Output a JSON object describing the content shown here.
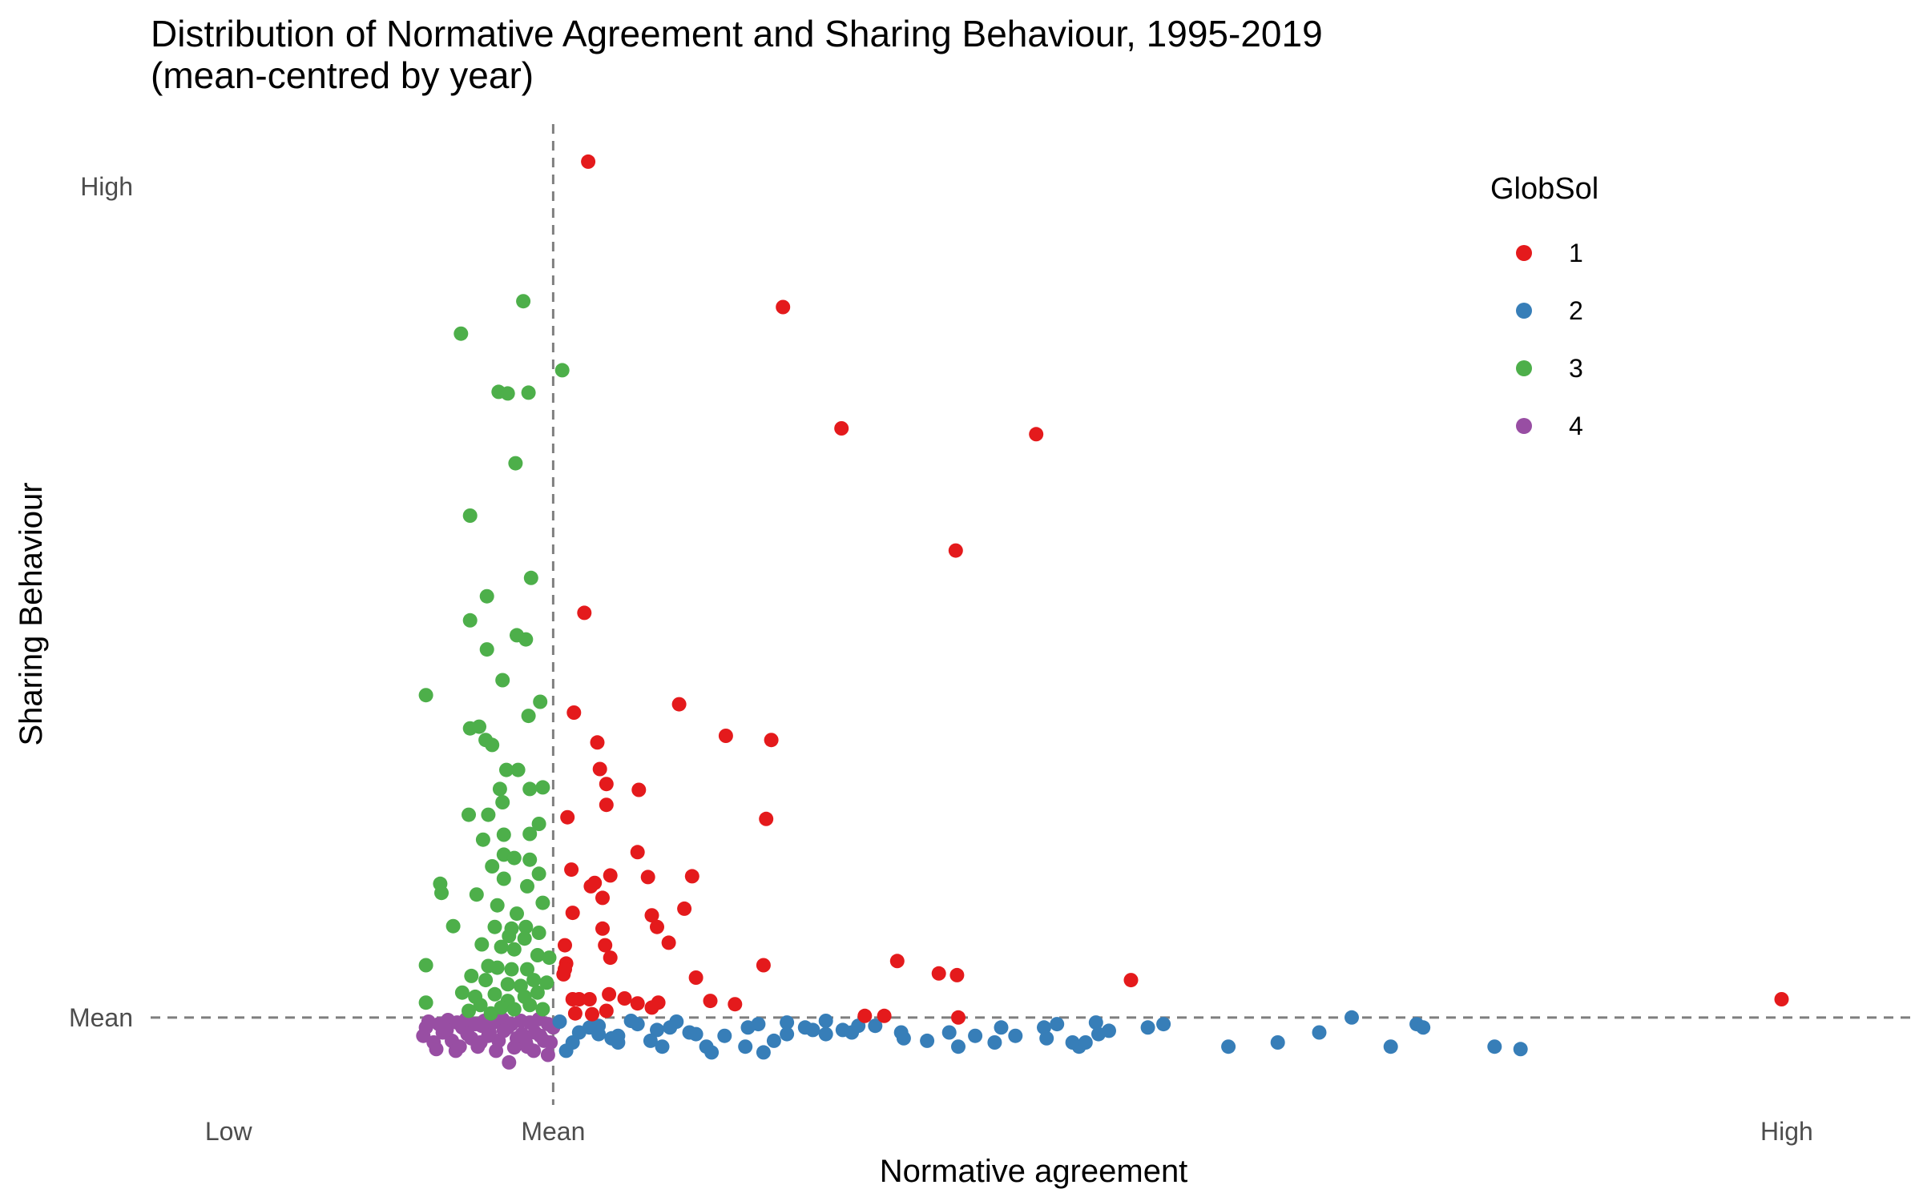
{
  "chart_data": {
    "type": "scatter",
    "title": "Distribution of Normative Agreement and Sharing Behaviour, 1995-2019",
    "subtitle": "(mean-centred by year)",
    "xlabel": "Normative agreement",
    "ylabel": "Sharing Behaviour",
    "x_ticks": [
      {
        "value": -0.25,
        "label": "Low"
      },
      {
        "value": 0,
        "label": "Mean"
      },
      {
        "value": 0.95,
        "label": "High"
      }
    ],
    "y_ticks": [
      {
        "value": 0,
        "label": "Mean"
      },
      {
        "value": 1,
        "label": "High"
      }
    ],
    "xlim": [
      -0.31,
      1.05
    ],
    "ylim": [
      -0.11,
      1.08
    ],
    "reference_lines": {
      "x": 0,
      "y": 0,
      "style": "dashed",
      "color": "#7f7f7f"
    },
    "grid": false,
    "legend": {
      "title": "GlobSol",
      "position": "top-right"
    },
    "series": [
      {
        "name": "1",
        "color": "#E41A1C",
        "points": [
          [
            0.027,
            1.03
          ],
          [
            0.177,
            0.855
          ],
          [
            0.222,
            0.709
          ],
          [
            0.372,
            0.702
          ],
          [
            0.31,
            0.562
          ],
          [
            0.024,
            0.487
          ],
          [
            0.016,
            0.367
          ],
          [
            0.097,
            0.377
          ],
          [
            0.133,
            0.339
          ],
          [
            0.168,
            0.334
          ],
          [
            0.034,
            0.331
          ],
          [
            0.036,
            0.299
          ],
          [
            0.041,
            0.281
          ],
          [
            0.066,
            0.274
          ],
          [
            0.041,
            0.256
          ],
          [
            0.011,
            0.241
          ],
          [
            0.164,
            0.239
          ],
          [
            0.065,
            0.199
          ],
          [
            0.044,
            0.171
          ],
          [
            0.073,
            0.169
          ],
          [
            0.107,
            0.17
          ],
          [
            0.014,
            0.178
          ],
          [
            0.029,
            0.158
          ],
          [
            0.032,
            0.162
          ],
          [
            0.038,
            0.144
          ],
          [
            0.101,
            0.131
          ],
          [
            0.015,
            0.126
          ],
          [
            0.076,
            0.123
          ],
          [
            0.038,
            0.107
          ],
          [
            0.08,
            0.109
          ],
          [
            0.009,
            0.087
          ],
          [
            0.04,
            0.087
          ],
          [
            0.01,
            0.065
          ],
          [
            0.044,
            0.072
          ],
          [
            0.089,
            0.09
          ],
          [
            0.265,
            0.068
          ],
          [
            0.162,
            0.063
          ],
          [
            0.297,
            0.053
          ],
          [
            0.311,
            0.051
          ],
          [
            0.445,
            0.045
          ],
          [
            0.009,
            0.058
          ],
          [
            0.11,
            0.048
          ],
          [
            0.008,
            0.052
          ],
          [
            0.015,
            0.022
          ],
          [
            0.02,
            0.022
          ],
          [
            0.028,
            0.022
          ],
          [
            0.043,
            0.028
          ],
          [
            0.055,
            0.023
          ],
          [
            0.065,
            0.017
          ],
          [
            0.081,
            0.018
          ],
          [
            0.14,
            0.016
          ],
          [
            0.121,
            0.02
          ],
          [
            0.24,
            0.002
          ],
          [
            0.255,
            0.002
          ],
          [
            0.312,
            0.0
          ],
          [
            0.017,
            0.005
          ],
          [
            0.03,
            0.004
          ],
          [
            0.076,
            0.012
          ],
          [
            0.041,
            0.008
          ],
          [
            0.946,
            0.022
          ]
        ]
      },
      {
        "name": "2",
        "color": "#377EB8",
        "points": [
          [
            0.005,
            -0.005
          ],
          [
            0.02,
            -0.018
          ],
          [
            0.035,
            -0.01
          ],
          [
            0.05,
            -0.022
          ],
          [
            0.065,
            -0.008
          ],
          [
            0.08,
            -0.015
          ],
          [
            0.095,
            -0.005
          ],
          [
            0.11,
            -0.02
          ],
          [
            0.015,
            -0.03
          ],
          [
            0.028,
            -0.012
          ],
          [
            0.045,
            -0.025
          ],
          [
            0.06,
            -0.004
          ],
          [
            0.075,
            -0.028
          ],
          [
            0.09,
            -0.012
          ],
          [
            0.105,
            -0.018
          ],
          [
            0.118,
            -0.035
          ],
          [
            0.132,
            -0.022
          ],
          [
            0.148,
            -0.035
          ],
          [
            0.158,
            -0.008
          ],
          [
            0.17,
            -0.028
          ],
          [
            0.18,
            -0.006
          ],
          [
            0.194,
            -0.012
          ],
          [
            0.21,
            -0.004
          ],
          [
            0.223,
            -0.015
          ],
          [
            0.235,
            -0.01
          ],
          [
            0.248,
            -0.01
          ],
          [
            0.268,
            -0.018
          ],
          [
            0.288,
            -0.028
          ],
          [
            0.305,
            -0.018
          ],
          [
            0.325,
            -0.022
          ],
          [
            0.345,
            -0.012
          ],
          [
            0.356,
            -0.022
          ],
          [
            0.378,
            -0.012
          ],
          [
            0.388,
            -0.008
          ],
          [
            0.4,
            -0.03
          ],
          [
            0.418,
            -0.006
          ],
          [
            0.42,
            -0.02
          ],
          [
            0.428,
            -0.016
          ],
          [
            0.458,
            -0.012
          ],
          [
            0.47,
            -0.008
          ],
          [
            0.52,
            -0.035
          ],
          [
            0.558,
            -0.03
          ],
          [
            0.59,
            -0.018
          ],
          [
            0.615,
            0.0
          ],
          [
            0.645,
            -0.035
          ],
          [
            0.665,
            -0.008
          ],
          [
            0.67,
            -0.012
          ],
          [
            0.725,
            -0.035
          ],
          [
            0.745,
            -0.038
          ],
          [
            0.162,
            -0.042
          ],
          [
            0.21,
            -0.02
          ],
          [
            0.27,
            -0.025
          ],
          [
            0.312,
            -0.035
          ],
          [
            0.122,
            -0.042
          ],
          [
            0.084,
            -0.035
          ],
          [
            0.01,
            -0.04
          ],
          [
            0.38,
            -0.025
          ],
          [
            0.405,
            -0.035
          ],
          [
            0.2,
            -0.015
          ],
          [
            0.15,
            -0.012
          ],
          [
            0.05,
            -0.03
          ],
          [
            0.035,
            -0.02
          ],
          [
            0.34,
            -0.03
          ],
          [
            0.23,
            -0.018
          ],
          [
            0.18,
            -0.02
          ],
          [
            0.41,
            -0.03
          ]
        ]
      },
      {
        "name": "3",
        "color": "#4DAF4A",
        "points": [
          [
            -0.023,
            0.862
          ],
          [
            -0.071,
            0.823
          ],
          [
            0.007,
            0.779
          ],
          [
            -0.042,
            0.753
          ],
          [
            -0.035,
            0.751
          ],
          [
            -0.019,
            0.752
          ],
          [
            -0.029,
            0.667
          ],
          [
            -0.064,
            0.604
          ],
          [
            -0.017,
            0.529
          ],
          [
            -0.051,
            0.507
          ],
          [
            -0.064,
            0.478
          ],
          [
            -0.028,
            0.46
          ],
          [
            -0.021,
            0.455
          ],
          [
            -0.051,
            0.443
          ],
          [
            -0.039,
            0.406
          ],
          [
            -0.098,
            0.388
          ],
          [
            -0.01,
            0.38
          ],
          [
            -0.019,
            0.363
          ],
          [
            -0.064,
            0.348
          ],
          [
            -0.057,
            0.35
          ],
          [
            -0.052,
            0.334
          ],
          [
            -0.047,
            0.328
          ],
          [
            -0.036,
            0.298
          ],
          [
            -0.027,
            0.298
          ],
          [
            -0.008,
            0.277
          ],
          [
            -0.018,
            0.275
          ],
          [
            -0.041,
            0.275
          ],
          [
            -0.039,
            0.259
          ],
          [
            -0.065,
            0.244
          ],
          [
            -0.05,
            0.244
          ],
          [
            -0.011,
            0.233
          ],
          [
            -0.018,
            0.221
          ],
          [
            -0.038,
            0.22
          ],
          [
            -0.054,
            0.214
          ],
          [
            -0.038,
            0.196
          ],
          [
            -0.03,
            0.192
          ],
          [
            -0.018,
            0.19
          ],
          [
            -0.047,
            0.182
          ],
          [
            -0.038,
            0.167
          ],
          [
            -0.087,
            0.161
          ],
          [
            -0.086,
            0.15
          ],
          [
            -0.011,
            0.173
          ],
          [
            -0.02,
            0.158
          ],
          [
            -0.059,
            0.148
          ],
          [
            -0.043,
            0.135
          ],
          [
            -0.028,
            0.125
          ],
          [
            -0.008,
            0.138
          ],
          [
            -0.045,
            0.109
          ],
          [
            -0.021,
            0.109
          ],
          [
            -0.077,
            0.11
          ],
          [
            -0.032,
            0.107
          ],
          [
            -0.034,
            0.098
          ],
          [
            -0.022,
            0.095
          ],
          [
            -0.011,
            0.102
          ],
          [
            -0.055,
            0.088
          ],
          [
            -0.04,
            0.085
          ],
          [
            -0.03,
            0.082
          ],
          [
            -0.012,
            0.075
          ],
          [
            -0.003,
            0.072
          ],
          [
            -0.098,
            0.063
          ],
          [
            -0.05,
            0.062
          ],
          [
            -0.043,
            0.06
          ],
          [
            -0.032,
            0.058
          ],
          [
            -0.02,
            0.058
          ],
          [
            -0.063,
            0.05
          ],
          [
            -0.052,
            0.045
          ],
          [
            -0.035,
            0.04
          ],
          [
            -0.025,
            0.038
          ],
          [
            -0.015,
            0.045
          ],
          [
            -0.005,
            0.042
          ],
          [
            -0.07,
            0.03
          ],
          [
            -0.06,
            0.025
          ],
          [
            -0.045,
            0.028
          ],
          [
            -0.035,
            0.02
          ],
          [
            -0.022,
            0.025
          ],
          [
            -0.012,
            0.03
          ],
          [
            -0.098,
            0.018
          ],
          [
            -0.056,
            0.015
          ],
          [
            -0.04,
            0.012
          ],
          [
            -0.03,
            0.01
          ],
          [
            -0.018,
            0.015
          ],
          [
            -0.008,
            0.01
          ],
          [
            -0.065,
            0.008
          ],
          [
            -0.048,
            0.005
          ]
        ]
      },
      {
        "name": "4",
        "color": "#984EA3",
        "points": [
          [
            -0.1,
            -0.022
          ],
          [
            -0.092,
            -0.03
          ],
          [
            -0.085,
            -0.018
          ],
          [
            -0.078,
            -0.028
          ],
          [
            -0.07,
            -0.012
          ],
          [
            -0.063,
            -0.025
          ],
          [
            -0.056,
            -0.03
          ],
          [
            -0.049,
            -0.018
          ],
          [
            -0.042,
            -0.028
          ],
          [
            -0.035,
            -0.012
          ],
          [
            -0.028,
            -0.025
          ],
          [
            -0.021,
            -0.03
          ],
          [
            -0.014,
            -0.018
          ],
          [
            -0.007,
            -0.028
          ],
          [
            0.0,
            -0.012
          ],
          [
            -0.096,
            -0.005
          ],
          [
            -0.088,
            -0.008
          ],
          [
            -0.081,
            -0.003
          ],
          [
            -0.074,
            -0.006
          ],
          [
            -0.067,
            -0.002
          ],
          [
            -0.06,
            -0.008
          ],
          [
            -0.053,
            -0.004
          ],
          [
            -0.046,
            -0.006
          ],
          [
            -0.039,
            -0.002
          ],
          [
            -0.032,
            -0.008
          ],
          [
            -0.025,
            -0.004
          ],
          [
            -0.018,
            -0.006
          ],
          [
            -0.011,
            -0.002
          ],
          [
            -0.004,
            -0.008
          ],
          [
            -0.09,
            -0.038
          ],
          [
            -0.075,
            -0.04
          ],
          [
            -0.058,
            -0.035
          ],
          [
            -0.044,
            -0.04
          ],
          [
            -0.03,
            -0.036
          ],
          [
            -0.015,
            -0.04
          ],
          [
            -0.004,
            -0.045
          ],
          [
            -0.034,
            -0.054
          ],
          [
            -0.082,
            -0.015
          ],
          [
            -0.066,
            -0.02
          ],
          [
            -0.05,
            -0.022
          ],
          [
            -0.038,
            -0.016
          ],
          [
            -0.024,
            -0.02
          ],
          [
            -0.01,
            -0.022
          ],
          [
            -0.002,
            -0.03
          ],
          [
            -0.098,
            -0.012
          ],
          [
            -0.072,
            -0.035
          ],
          [
            -0.055,
            -0.01
          ],
          [
            -0.02,
            -0.035
          ]
        ]
      }
    ]
  }
}
